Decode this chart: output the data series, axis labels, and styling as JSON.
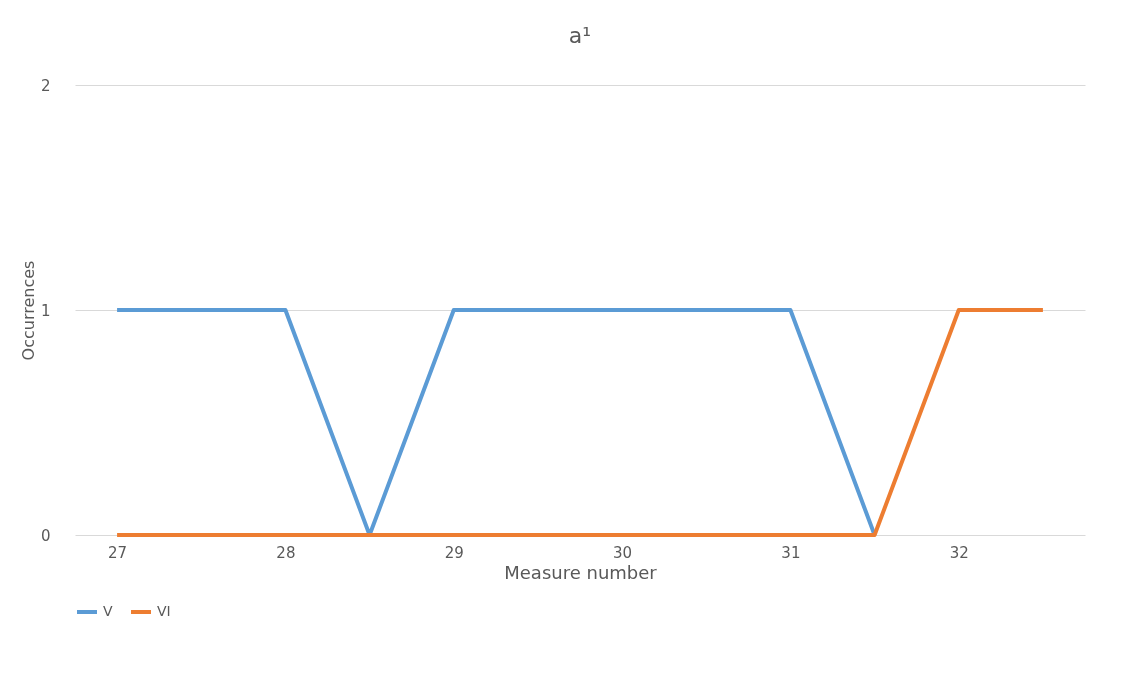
{
  "chart_data": {
    "type": "line",
    "title": "a¹",
    "xlabel": "Measure number",
    "ylabel": "Occurrences",
    "x": [
      27,
      27.5,
      28,
      28.5,
      29,
      29.5,
      30,
      30.5,
      31,
      31.5,
      32,
      32.5
    ],
    "series": [
      {
        "name": "V",
        "color": "#5b9bd5",
        "values": [
          1,
          1,
          1,
          0,
          1,
          1,
          1,
          1,
          1,
          0,
          null,
          null
        ]
      },
      {
        "name": "VI",
        "color": "#ed7d31",
        "values": [
          0,
          0,
          0,
          0,
          0,
          0,
          0,
          0,
          0,
          0,
          1,
          1
        ]
      }
    ],
    "xlim": [
      26.75,
      32.75
    ],
    "xticks": [
      27,
      28,
      29,
      30,
      31,
      32
    ],
    "ylim": [
      0,
      2
    ],
    "yticks": [
      0,
      1,
      2
    ],
    "grid": "y",
    "legend": "bottom",
    "marker": "none",
    "line_style": "solid"
  }
}
